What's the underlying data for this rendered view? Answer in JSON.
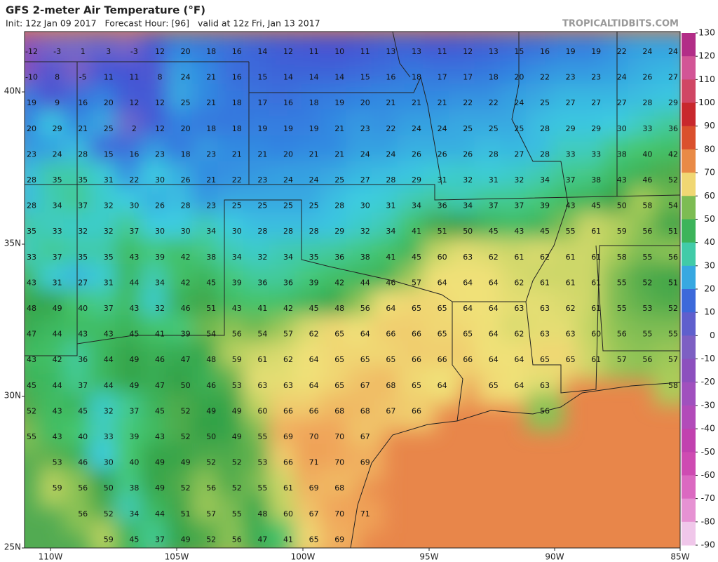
{
  "header": {
    "title": "GFS 2-meter Air Temperature (°F)",
    "subtitle": "Init: 12z Jan 09 2017   Forecast Hour: [96]   valid at 12z Fri, Jan 13 2017",
    "brand": "TROPICALTIDBITS.COM"
  },
  "lat_labels": [
    "40N",
    "35N",
    "30N",
    "25N"
  ],
  "lon_labels": [
    "110W",
    "105W",
    "100W",
    "95W",
    "90W",
    "85W"
  ],
  "colorbar_ticks": [
    130,
    120,
    110,
    100,
    90,
    80,
    70,
    60,
    50,
    40,
    30,
    20,
    10,
    0,
    -10,
    -20,
    -30,
    -40,
    -50,
    -60,
    -70,
    -80,
    -90
  ],
  "temperature_grid": [
    [
      -12,
      -3,
      1,
      3,
      -3,
      12,
      20,
      18,
      16,
      14,
      12,
      11,
      10,
      11,
      13,
      13,
      11,
      12,
      13,
      15,
      16,
      19,
      19,
      22,
      24,
      24
    ],
    [
      -10,
      8,
      -5,
      11,
      11,
      8,
      24,
      21,
      16,
      15,
      14,
      14,
      14,
      15,
      16,
      18,
      17,
      17,
      18,
      20,
      22,
      23,
      23,
      24,
      26,
      27
    ],
    [
      19,
      9,
      16,
      20,
      12,
      12,
      25,
      21,
      18,
      17,
      16,
      18,
      19,
      20,
      21,
      21,
      21,
      22,
      22,
      24,
      25,
      27,
      27,
      27,
      28,
      29
    ],
    [
      20,
      29,
      21,
      25,
      2,
      12,
      20,
      18,
      18,
      19,
      19,
      19,
      21,
      23,
      22,
      24,
      24,
      25,
      25,
      25,
      28,
      29,
      29,
      30,
      33,
      36
    ],
    [
      23,
      24,
      28,
      15,
      16,
      23,
      18,
      23,
      21,
      21,
      20,
      21,
      21,
      24,
      24,
      26,
      26,
      26,
      28,
      27,
      28,
      33,
      33,
      38,
      40,
      42
    ],
    [
      28,
      35,
      35,
      31,
      22,
      30,
      26,
      21,
      22,
      23,
      24,
      24,
      25,
      27,
      28,
      29,
      31,
      32,
      31,
      32,
      34,
      37,
      38,
      43,
      46,
      52
    ],
    [
      28,
      34,
      37,
      32,
      30,
      26,
      28,
      23,
      25,
      25,
      25,
      25,
      28,
      30,
      31,
      34,
      36,
      34,
      37,
      37,
      39,
      43,
      45,
      50,
      58,
      54
    ],
    [
      35,
      33,
      32,
      32,
      37,
      30,
      30,
      34,
      30,
      28,
      28,
      28,
      29,
      32,
      34,
      41,
      51,
      50,
      45,
      43,
      45,
      55,
      61,
      59,
      56,
      51
    ],
    [
      33,
      37,
      35,
      35,
      43,
      39,
      42,
      38,
      34,
      32,
      34,
      35,
      36,
      38,
      41,
      45,
      60,
      63,
      62,
      61,
      62,
      61,
      61,
      58,
      55,
      56
    ],
    [
      43,
      31,
      27,
      31,
      44,
      34,
      42,
      45,
      39,
      36,
      36,
      39,
      42,
      44,
      46,
      57,
      64,
      64,
      64,
      62,
      61,
      61,
      61,
      55,
      52,
      51
    ],
    [
      48,
      49,
      40,
      37,
      43,
      32,
      46,
      51,
      43,
      41,
      42,
      45,
      48,
      56,
      64,
      65,
      65,
      64,
      64,
      63,
      63,
      62,
      61,
      55,
      53,
      52
    ],
    [
      47,
      44,
      43,
      43,
      45,
      41,
      39,
      54,
      56,
      54,
      57,
      62,
      65,
      64,
      66,
      66,
      65,
      65,
      64,
      62,
      63,
      63,
      60,
      56,
      55,
      55
    ],
    [
      43,
      42,
      36,
      44,
      49,
      46,
      47,
      48,
      59,
      61,
      62,
      64,
      65,
      65,
      65,
      66,
      66,
      66,
      64,
      64,
      65,
      65,
      61,
      57,
      56,
      57
    ],
    [
      45,
      44,
      37,
      44,
      49,
      47,
      50,
      46,
      53,
      63,
      63,
      64,
      65,
      67,
      68,
      65,
      64,
      null,
      65,
      64,
      63,
      null,
      null,
      null,
      null,
      58
    ],
    [
      52,
      43,
      45,
      32,
      37,
      45,
      52,
      49,
      49,
      60,
      66,
      66,
      68,
      68,
      67,
      66,
      null,
      null,
      null,
      null,
      56,
      null,
      null,
      null,
      null,
      null
    ],
    [
      55,
      43,
      40,
      33,
      39,
      43,
      52,
      50,
      49,
      55,
      69,
      70,
      70,
      67,
      null,
      null,
      null,
      null,
      null,
      null,
      null,
      null,
      null,
      null,
      null,
      null
    ],
    [
      null,
      53,
      46,
      30,
      40,
      49,
      49,
      52,
      52,
      53,
      66,
      71,
      70,
      69,
      null,
      null,
      null,
      null,
      null,
      null,
      null,
      null,
      null,
      null,
      null,
      null
    ],
    [
      null,
      59,
      56,
      50,
      38,
      49,
      52,
      56,
      52,
      55,
      61,
      69,
      68,
      null,
      null,
      null,
      null,
      null,
      null,
      null,
      null,
      null,
      null,
      null,
      null,
      null
    ],
    [
      null,
      null,
      56,
      52,
      34,
      44,
      51,
      57,
      55,
      48,
      60,
      67,
      70,
      71,
      null,
      null,
      null,
      null,
      null,
      null,
      null,
      null,
      null,
      null,
      null,
      null
    ],
    [
      null,
      null,
      null,
      59,
      45,
      37,
      49,
      52,
      56,
      47,
      41,
      65,
      69,
      null,
      null,
      null,
      null,
      null,
      null,
      null,
      null,
      null,
      null,
      null,
      null,
      null
    ]
  ]
}
